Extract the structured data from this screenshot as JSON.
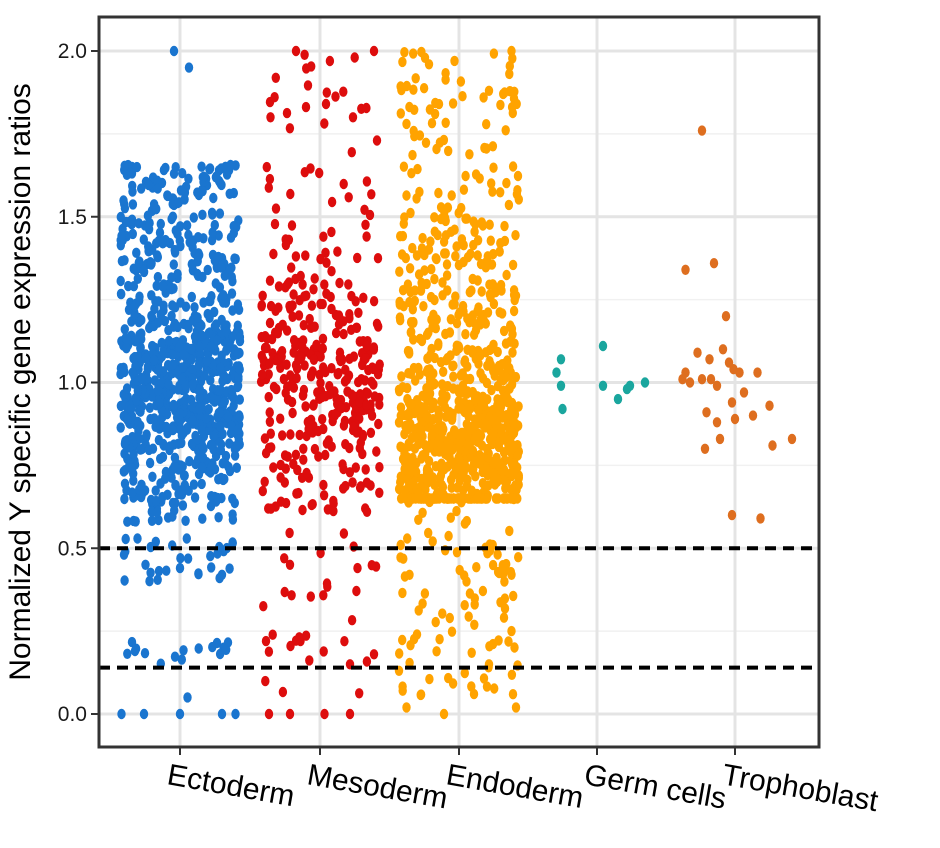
{
  "chart_data": {
    "type": "scatter",
    "ylabel": "Normalized Y specific gene expression ratios",
    "xlabel": "",
    "ylim": [
      -0.1,
      2.1
    ],
    "y_ticks": [
      "0.0",
      "0.5",
      "1.0",
      "1.5",
      "2.0"
    ],
    "categories": [
      "Ectoderm",
      "Mesoderm",
      "Endoderm",
      "Germ cells",
      "Trophoblast"
    ],
    "grid": true,
    "legend": "none",
    "reference_lines": [
      0.5,
      0.14
    ],
    "series": [
      {
        "category": "Ectoderm",
        "color": "#1a75cf",
        "n_points": 950,
        "sample_points": [
          [
            -0.39,
            0.0
          ],
          [
            -0.24,
            0.0
          ],
          [
            0.0,
            0.0
          ],
          [
            0.28,
            0.0
          ],
          [
            0.37,
            0.0
          ],
          [
            -0.04,
            2.0
          ],
          [
            0.06,
            1.95
          ],
          [
            -0.32,
            1.65
          ],
          [
            0.26,
            1.64
          ],
          [
            -0.04,
            1.63
          ],
          [
            -0.23,
            0.45
          ],
          [
            0.0,
            0.44
          ],
          [
            0.28,
            0.42
          ],
          [
            -0.3,
            0.19
          ],
          [
            0.29,
            0.2
          ],
          [
            0.05,
            0.05
          ]
        ]
      },
      {
        "category": "Mesoderm",
        "color": "#dd0d0d",
        "n_points": 420,
        "sample_points": [
          [
            -0.34,
            0.0
          ],
          [
            -0.2,
            0.0
          ],
          [
            0.03,
            0.0
          ],
          [
            0.2,
            0.0
          ],
          [
            -0.16,
            2.0
          ],
          [
            0.36,
            2.0
          ],
          [
            0.38,
            1.73
          ],
          [
            0.22,
            1.8
          ],
          [
            -0.33,
            1.8
          ],
          [
            -0.2,
            0.45
          ],
          [
            0.25,
            0.44
          ],
          [
            -0.13,
            0.22
          ],
          [
            -0.36,
            0.22
          ],
          [
            0.2,
            0.15
          ],
          [
            0.36,
            0.18
          ]
        ]
      },
      {
        "category": "Endoderm",
        "color": "#ffa300",
        "n_points": 980,
        "sample_points": [
          [
            -0.35,
            0.02
          ],
          [
            -0.1,
            0.0
          ],
          [
            0.1,
            0.06
          ],
          [
            0.38,
            0.02
          ],
          [
            0.35,
            2.0
          ],
          [
            -0.2,
            1.96
          ],
          [
            -0.03,
            1.97
          ],
          [
            0.2,
            1.88
          ],
          [
            -0.35,
            1.78
          ],
          [
            -0.33,
            0.42
          ],
          [
            0.05,
            0.4
          ],
          [
            0.35,
            0.42
          ],
          [
            -0.28,
            0.24
          ],
          [
            0.35,
            0.25
          ],
          [
            0.2,
            0.15
          ]
        ]
      },
      {
        "category": "Germ cells",
        "color": "#1aa69e",
        "n_points": 10,
        "points": [
          [
            -0.24,
            1.07
          ],
          [
            -0.24,
            0.99
          ],
          [
            -0.23,
            0.92
          ],
          [
            0.04,
            1.11
          ],
          [
            0.04,
            0.99
          ],
          [
            0.14,
            0.95
          ],
          [
            0.22,
            0.99
          ],
          [
            0.32,
            1.0
          ],
          [
            -0.27,
            1.03
          ],
          [
            0.2,
            0.98
          ]
        ]
      },
      {
        "category": "Trophoblast",
        "color": "#de6e1f",
        "n_points": 30,
        "points": [
          [
            -0.22,
            1.76
          ],
          [
            -0.33,
            1.34
          ],
          [
            -0.14,
            1.36
          ],
          [
            -0.06,
            1.2
          ],
          [
            -0.35,
            1.01
          ],
          [
            -0.33,
            1.03
          ],
          [
            -0.25,
            1.09
          ],
          [
            -0.22,
            1.01
          ],
          [
            -0.16,
            1.01
          ],
          [
            -0.17,
            1.07
          ],
          [
            -0.04,
            1.06
          ],
          [
            -0.01,
            1.04
          ],
          [
            0.15,
            1.03
          ],
          [
            -0.02,
            0.94
          ],
          [
            0.23,
            0.93
          ],
          [
            -0.19,
            0.91
          ],
          [
            -0.12,
            0.88
          ],
          [
            0.0,
            0.89
          ],
          [
            0.25,
            0.81
          ],
          [
            0.38,
            0.83
          ],
          [
            -0.1,
            0.83
          ],
          [
            -0.2,
            0.8
          ],
          [
            -0.02,
            0.6
          ],
          [
            0.17,
            0.59
          ],
          [
            0.03,
            1.03
          ],
          [
            -0.12,
            0.99
          ],
          [
            0.06,
            0.97
          ],
          [
            -0.3,
            1.0
          ],
          [
            0.12,
            0.9
          ],
          [
            -0.08,
            1.1
          ]
        ]
      }
    ],
    "distribution": [
      {
        "category": "Ectoderm",
        "core_range": [
          0.58,
          1.42
        ],
        "dense_center": 0.95,
        "upper_sparse": [
          1.42,
          1.66
        ],
        "mid_gap": [
          0.4,
          0.53
        ],
        "low_cluster": [
          0.15,
          0.22
        ]
      },
      {
        "category": "Mesoderm",
        "core_range": [
          0.62,
          1.45
        ],
        "dense_center": 1.0,
        "upper_sparse": [
          1.45,
          2.0
        ],
        "lower_sparse": [
          0.05,
          0.62
        ]
      },
      {
        "category": "Endoderm",
        "core_range": [
          0.65,
          1.5
        ],
        "dense_center": 0.8,
        "upper_sparse": [
          1.5,
          2.0
        ],
        "lower_sparse": [
          0.05,
          0.65
        ]
      }
    ]
  }
}
